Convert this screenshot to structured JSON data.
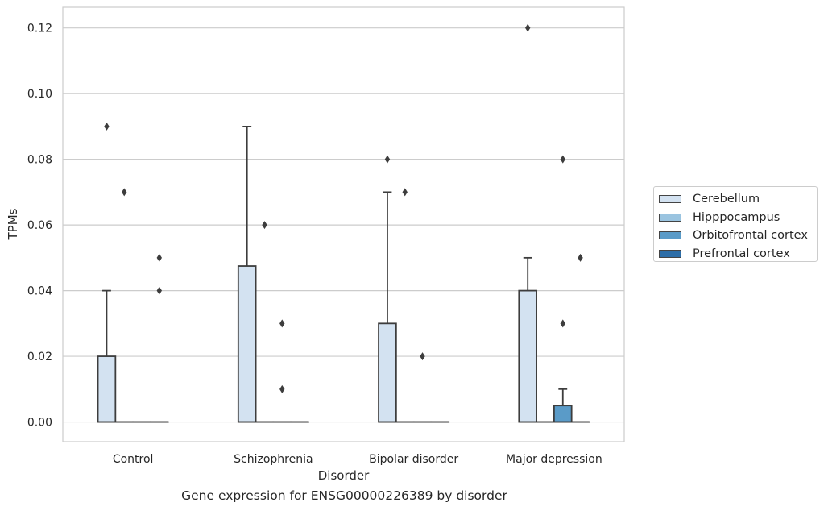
{
  "caption": "Gene expression for ENSG00000226389 by disorder",
  "chart_data": {
    "type": "boxplot",
    "xlabel": "Disorder",
    "ylabel": "TPMs",
    "categories": [
      "Control",
      "Schizophrenia",
      "Bipolar disorder",
      "Major depression"
    ],
    "ylim": [
      -0.006,
      0.1263
    ],
    "yticks": [
      0.0,
      0.02,
      0.04,
      0.06,
      0.08,
      0.1,
      0.12
    ],
    "ytick_labels": [
      "0.00",
      "0.02",
      "0.04",
      "0.06",
      "0.08",
      "0.10",
      "0.12"
    ],
    "grid": "horizontal",
    "legend_position": "right",
    "series": [
      {
        "name": "Cerebellum",
        "color": "#d3e2f1",
        "boxes": [
          {
            "q1": 0.0,
            "median": 0.0,
            "q3": 0.02,
            "whislo": 0.0,
            "whishi": 0.04,
            "fliers": [
              0.09
            ]
          },
          {
            "q1": 0.0,
            "median": 0.0,
            "q3": 0.0475,
            "whislo": 0.0,
            "whishi": 0.09,
            "fliers": []
          },
          {
            "q1": 0.0,
            "median": 0.0,
            "q3": 0.03,
            "whislo": 0.0,
            "whishi": 0.07,
            "fliers": [
              0.08
            ]
          },
          {
            "q1": 0.0,
            "median": 0.0,
            "q3": 0.04,
            "whislo": 0.0,
            "whishi": 0.05,
            "fliers": [
              0.12
            ]
          }
        ]
      },
      {
        "name": "Hipppocampus",
        "color": "#9ac4e0",
        "boxes": [
          {
            "q1": 0.0,
            "median": 0.0,
            "q3": 0.0,
            "whislo": 0.0,
            "whishi": 0.0,
            "fliers": [
              0.07
            ]
          },
          {
            "q1": 0.0,
            "median": 0.0,
            "q3": 0.0,
            "whislo": 0.0,
            "whishi": 0.0,
            "fliers": [
              0.06
            ]
          },
          {
            "q1": 0.0,
            "median": 0.0,
            "q3": 0.0,
            "whislo": 0.0,
            "whishi": 0.0,
            "fliers": [
              0.07
            ]
          },
          {
            "q1": 0.0,
            "median": 0.0,
            "q3": 0.0,
            "whislo": 0.0,
            "whishi": 0.0,
            "fliers": []
          }
        ]
      },
      {
        "name": "Orbitofrontal cortex",
        "color": "#5a9bc8",
        "boxes": [
          {
            "q1": 0.0,
            "median": 0.0,
            "q3": 0.0,
            "whislo": 0.0,
            "whishi": 0.0,
            "fliers": []
          },
          {
            "q1": 0.0,
            "median": 0.0,
            "q3": 0.0,
            "whislo": 0.0,
            "whishi": 0.0,
            "fliers": [
              0.03,
              0.01
            ]
          },
          {
            "q1": 0.0,
            "median": 0.0,
            "q3": 0.0,
            "whislo": 0.0,
            "whishi": 0.0,
            "fliers": [
              0.02
            ]
          },
          {
            "q1": 0.0,
            "median": 0.0,
            "q3": 0.005,
            "whislo": 0.0,
            "whishi": 0.01,
            "fliers": [
              0.08,
              0.03
            ]
          }
        ]
      },
      {
        "name": "Prefrontal cortex",
        "color": "#2d6ea8",
        "boxes": [
          {
            "q1": 0.0,
            "median": 0.0,
            "q3": 0.0,
            "whislo": 0.0,
            "whishi": 0.0,
            "fliers": [
              0.05,
              0.04
            ]
          },
          {
            "q1": 0.0,
            "median": 0.0,
            "q3": 0.0,
            "whislo": 0.0,
            "whishi": 0.0,
            "fliers": []
          },
          {
            "q1": 0.0,
            "median": 0.0,
            "q3": 0.0,
            "whislo": 0.0,
            "whishi": 0.0,
            "fliers": []
          },
          {
            "q1": 0.0,
            "median": 0.0,
            "q3": 0.0,
            "whislo": 0.0,
            "whishi": 0.0,
            "fliers": [
              0.05
            ]
          }
        ]
      }
    ]
  }
}
